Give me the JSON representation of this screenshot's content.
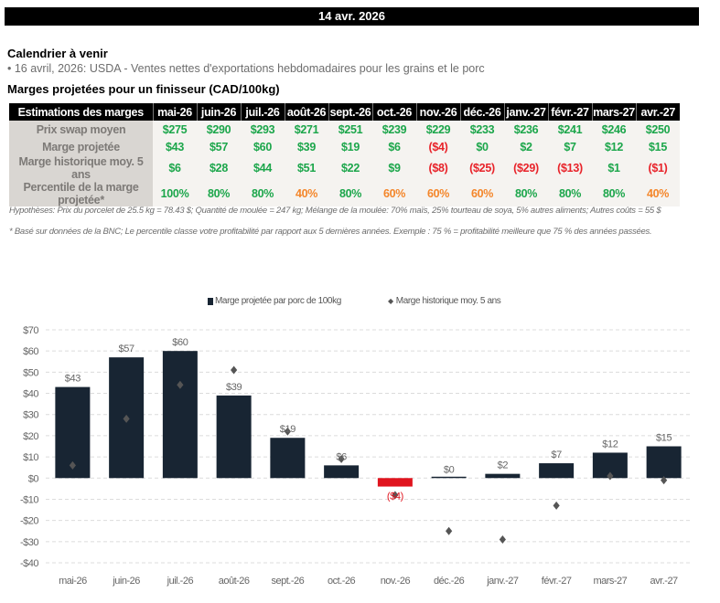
{
  "header": {
    "date": "14 avr. 2026"
  },
  "calendar": {
    "title": "Calendrier à venir",
    "items": [
      "• 16 avril, 2026: USDA - Ventes nettes d'exportations hebdomadaires pour les grains et le porc"
    ]
  },
  "margins_table": {
    "title": "Marges projetées pour un finisseur (CAD/100kg)",
    "header_label": "Estimations des marges",
    "months": [
      "mai-26",
      "juin-26",
      "juil.-26",
      "août-26",
      "sept.-26",
      "oct.-26",
      "nov.-26",
      "déc.-26",
      "janv.-27",
      "févr.-27",
      "mars-27",
      "avr.-27"
    ],
    "rows": [
      {
        "label": "Prix swap moyen",
        "cells": [
          {
            "text": "$275",
            "tone": "pos"
          },
          {
            "text": "$290",
            "tone": "pos"
          },
          {
            "text": "$293",
            "tone": "pos"
          },
          {
            "text": "$271",
            "tone": "pos"
          },
          {
            "text": "$251",
            "tone": "pos"
          },
          {
            "text": "$239",
            "tone": "pos"
          },
          {
            "text": "$229",
            "tone": "pos"
          },
          {
            "text": "$233",
            "tone": "pos"
          },
          {
            "text": "$236",
            "tone": "pos"
          },
          {
            "text": "$241",
            "tone": "pos"
          },
          {
            "text": "$246",
            "tone": "pos"
          },
          {
            "text": "$250",
            "tone": "pos"
          }
        ]
      },
      {
        "label": "Marge projetée",
        "cells": [
          {
            "text": "$43",
            "tone": "pos"
          },
          {
            "text": "$57",
            "tone": "pos"
          },
          {
            "text": "$60",
            "tone": "pos"
          },
          {
            "text": "$39",
            "tone": "pos"
          },
          {
            "text": "$19",
            "tone": "pos"
          },
          {
            "text": "$6",
            "tone": "pos"
          },
          {
            "text": "($4)",
            "tone": "neg"
          },
          {
            "text": "$0",
            "tone": "pos"
          },
          {
            "text": "$2",
            "tone": "pos"
          },
          {
            "text": "$7",
            "tone": "pos"
          },
          {
            "text": "$12",
            "tone": "pos"
          },
          {
            "text": "$15",
            "tone": "pos"
          }
        ]
      },
      {
        "label": "Marge historique moy. 5 ans",
        "cells": [
          {
            "text": "$6",
            "tone": "pos"
          },
          {
            "text": "$28",
            "tone": "pos"
          },
          {
            "text": "$44",
            "tone": "pos"
          },
          {
            "text": "$51",
            "tone": "pos"
          },
          {
            "text": "$22",
            "tone": "pos"
          },
          {
            "text": "$9",
            "tone": "pos"
          },
          {
            "text": "($8)",
            "tone": "neg"
          },
          {
            "text": "($25)",
            "tone": "neg"
          },
          {
            "text": "($29)",
            "tone": "neg"
          },
          {
            "text": "($13)",
            "tone": "neg"
          },
          {
            "text": "$1",
            "tone": "pos"
          },
          {
            "text": "($1)",
            "tone": "neg"
          }
        ]
      },
      {
        "label": "Percentile de la marge projetée*",
        "cells": [
          {
            "text": "100%",
            "tone": "pos"
          },
          {
            "text": "80%",
            "tone": "pos"
          },
          {
            "text": "80%",
            "tone": "pos"
          },
          {
            "text": "40%",
            "tone": "mid"
          },
          {
            "text": "80%",
            "tone": "pos"
          },
          {
            "text": "60%",
            "tone": "mid"
          },
          {
            "text": "60%",
            "tone": "mid"
          },
          {
            "text": "60%",
            "tone": "mid"
          },
          {
            "text": "80%",
            "tone": "pos"
          },
          {
            "text": "80%",
            "tone": "pos"
          },
          {
            "text": "80%",
            "tone": "pos"
          },
          {
            "text": "40%",
            "tone": "mid"
          }
        ]
      }
    ],
    "footnotes": [
      "Hypothèses: Prix du porcelet de 25.5 kg = 78.43 $; Quantité de moulée = 247 kg; Mélange de la moulée: 70% maïs, 25% tourteau de soya, 5% autres aliments; Autres coûts = 55 $",
      "* Basé sur données de la BNC; Le percentile classe votre profitabilité par rapport aux 5 dernières années. Exemple : 75 % = profitabilité meilleure que 75 % des années passées."
    ]
  },
  "colors": {
    "positive": "#1ca64b",
    "negative": "#e8232a",
    "neutral": "#f4862a",
    "bar": "#182533",
    "bar_negative": "#e0141e",
    "marker": "#555555"
  },
  "chart_data": {
    "type": "bar",
    "title": "",
    "xlabel": "",
    "ylabel": "",
    "categories": [
      "mai-26",
      "juin-26",
      "juil.-26",
      "août-26",
      "sept.-26",
      "oct.-26",
      "nov.-26",
      "déc.-26",
      "janv.-27",
      "févr.-27",
      "mars-27",
      "avr.-27"
    ],
    "series": [
      {
        "name": "Marge projetée par porc de 100kg",
        "kind": "bar",
        "values": [
          43,
          57,
          60,
          39,
          19,
          6,
          -4,
          0,
          2,
          7,
          12,
          15
        ],
        "labels": [
          "$43",
          "$57",
          "$60",
          "$39",
          "$19",
          "$6",
          "($4)",
          "$0",
          "$2",
          "$7",
          "$12",
          "$15"
        ]
      },
      {
        "name": "Marge historique moy. 5 ans",
        "kind": "marker",
        "values": [
          6,
          28,
          44,
          51,
          22,
          9,
          -8,
          -25,
          -29,
          -13,
          1,
          -1
        ]
      }
    ],
    "ylim": [
      -40,
      70
    ],
    "yticks": [
      70,
      60,
      50,
      40,
      30,
      20,
      10,
      0,
      -10,
      -20,
      -30,
      -40
    ],
    "ytick_labels": [
      "$70",
      "$60",
      "$50",
      "$40",
      "$30",
      "$20",
      "$10",
      "$0",
      "-$10",
      "-$20",
      "-$30",
      "-$40"
    ],
    "grid": true,
    "legend_position": "top-center"
  }
}
